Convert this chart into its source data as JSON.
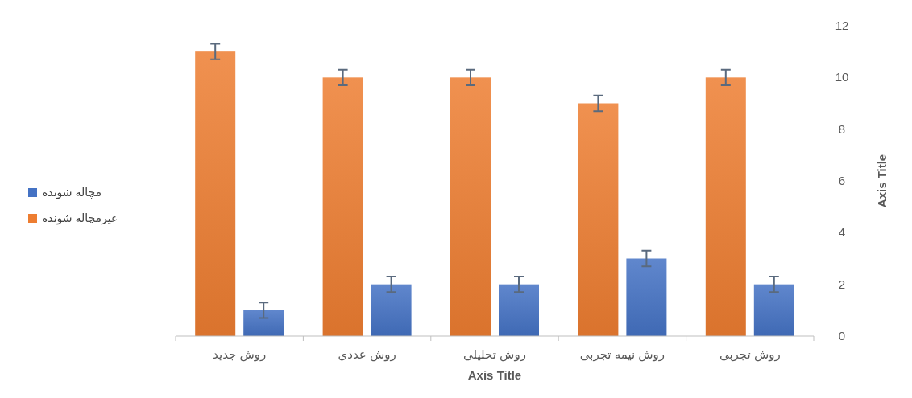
{
  "chart_data": {
    "type": "bar",
    "categories": [
      "روش جدید",
      "روش عددی",
      "روش تحلیلی",
      "روش نیمه تجربی",
      "روش تجربی"
    ],
    "series": [
      {
        "name": "غیرمچاله شونده",
        "color": "#ed7d31",
        "values": [
          11,
          10,
          10,
          9,
          10
        ],
        "errors": [
          0.3,
          0.3,
          0.3,
          0.3,
          0.3
        ]
      },
      {
        "name": "مچاله شونده",
        "color": "#4472c4",
        "values": [
          1,
          2,
          2,
          3,
          2
        ],
        "errors": [
          0.3,
          0.3,
          0.3,
          0.3,
          0.3
        ]
      }
    ],
    "xlabel": "Axis Title",
    "ylabel": "Axis Title",
    "ylim": [
      0,
      12
    ],
    "yticks": [
      0,
      2,
      4,
      6,
      8,
      10,
      12
    ],
    "grid": false,
    "legend": "left"
  }
}
